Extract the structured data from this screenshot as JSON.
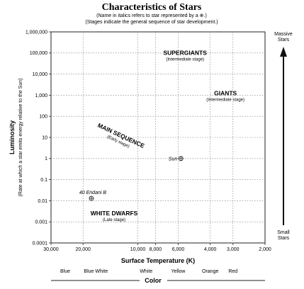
{
  "chart_data": {
    "type": "scatter",
    "title": "Characteristics of Stars",
    "subtitle_lines": [
      "(Name in italics refers to star represented by a ⊕.)",
      "(Stages indicate the general sequence of star development.)"
    ],
    "xlabel": "Surface Temperature (K)",
    "x_scale": "log-reversed",
    "xlim": [
      30000,
      2000
    ],
    "x_ticks": [
      {
        "value": 30000,
        "label": "30,000"
      },
      {
        "value": 20000,
        "label": "20,000"
      },
      {
        "value": 10000,
        "label": "10,000"
      },
      {
        "value": 8000,
        "label": "8,000"
      },
      {
        "value": 6000,
        "label": "6,000"
      },
      {
        "value": 4000,
        "label": "4,000"
      },
      {
        "value": 3000,
        "label": "3,000"
      },
      {
        "value": 2000,
        "label": "2,000"
      }
    ],
    "ylabel": "Luminosity",
    "ylabel_sub": "(Rate at which a star emits energy relative to the Sun)",
    "y_scale": "log",
    "ylim": [
      0.0001,
      1000000
    ],
    "y_ticks": [
      {
        "value": 0.0001,
        "label": "0.0001"
      },
      {
        "value": 0.001,
        "label": "0.001"
      },
      {
        "value": 0.01,
        "label": "0.01"
      },
      {
        "value": 0.1,
        "label": "0.1"
      },
      {
        "value": 1,
        "label": "1"
      },
      {
        "value": 10,
        "label": "10"
      },
      {
        "value": 100,
        "label": "100"
      },
      {
        "value": 1000,
        "label": "1,000"
      },
      {
        "value": 10000,
        "label": "10,000"
      },
      {
        "value": 100000,
        "label": "100,000"
      },
      {
        "value": 1000000,
        "label": "1,000,000"
      }
    ],
    "grid": "dotted",
    "regions": [
      {
        "label": "SUPERGIANTS",
        "stage": "(Intermediate stage)",
        "x": 5500,
        "y": 80000,
        "rotate": 0
      },
      {
        "label": "GIANTS",
        "stage": "(Intermediate stage)",
        "x": 3300,
        "y": 1000,
        "rotate": 0
      },
      {
        "label": "MAIN SEQUENCE",
        "stage": "(Early stage)",
        "x": 12500,
        "y": 10,
        "rotate": 25
      },
      {
        "label": "WHITE DWARFS",
        "stage": "(Late stage)",
        "x": 13500,
        "y": 0.002,
        "rotate": 0
      }
    ],
    "stars": [
      {
        "name": "Sun",
        "x": 5800,
        "y": 1,
        "label_side": "left"
      },
      {
        "name": "40 Eridani B",
        "x": 18000,
        "y": 0.013,
        "label_side": "above"
      }
    ],
    "color_axis": {
      "title": "Color",
      "labels": [
        {
          "label": "Blue",
          "x": 30000
        },
        {
          "label": "Blue White",
          "x": 17000
        },
        {
          "label": "White",
          "x": 9000
        },
        {
          "label": "Yellow",
          "x": 6000
        },
        {
          "label": "Orange",
          "x": 4000
        },
        {
          "label": "Red",
          "x": 3000
        }
      ]
    },
    "mass_axis": {
      "top": "Massive\nStars",
      "bottom": "Small\nStars"
    }
  }
}
